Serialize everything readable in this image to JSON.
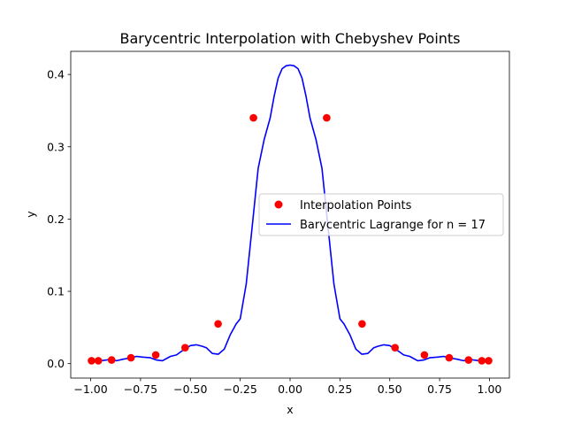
{
  "chart_data": {
    "type": "line",
    "title": "Barycentric Interpolation with Chebyshev Points",
    "xlabel": "x",
    "ylabel": "y",
    "xlim": [
      -1.1,
      1.1
    ],
    "ylim": [
      -0.02,
      0.432
    ],
    "x_ticks": [
      -1.0,
      -0.75,
      -0.5,
      -0.25,
      0.0,
      0.25,
      0.5,
      0.75,
      1.0
    ],
    "x_tick_labels": [
      "−1.00",
      "−0.75",
      "−0.50",
      "−0.25",
      "0.00",
      "0.25",
      "0.50",
      "0.75",
      "1.00"
    ],
    "y_ticks": [
      0.0,
      0.1,
      0.2,
      0.3,
      0.4
    ],
    "y_tick_labels": [
      "0.0",
      "0.1",
      "0.2",
      "0.3",
      "0.4"
    ],
    "grid": false,
    "legend_position": "center-right",
    "series": [
      {
        "name": "Interpolation Points",
        "kind": "scatter",
        "color": "#ff0000",
        "x": [
          -0.9957,
          -0.9618,
          -0.8952,
          -0.798,
          -0.6737,
          -0.5264,
          -0.3612,
          -0.1837,
          0.0,
          0.1837,
          0.3612,
          0.5264,
          0.6737,
          0.798,
          0.8952,
          0.9618,
          0.9957
        ],
        "y": [
          0.004,
          0.004,
          0.005,
          0.008,
          0.012,
          0.022,
          0.055,
          0.34,
          null,
          0.34,
          0.055,
          0.022,
          0.012,
          0.008,
          0.005,
          0.004,
          0.004
        ]
      },
      {
        "name": "Barycentric Lagrange for n = 17",
        "kind": "line",
        "color": "#0000ff",
        "x": [
          -1.0,
          -0.98,
          -0.95,
          -0.92,
          -0.9,
          -0.87,
          -0.84,
          -0.8,
          -0.77,
          -0.74,
          -0.7,
          -0.67,
          -0.64,
          -0.6,
          -0.57,
          -0.54,
          -0.5,
          -0.47,
          -0.44,
          -0.42,
          -0.39,
          -0.36,
          -0.33,
          -0.3,
          -0.27,
          -0.25,
          -0.22,
          -0.19,
          -0.16,
          -0.13,
          -0.1,
          -0.08,
          -0.06,
          -0.04,
          -0.02,
          0.0,
          0.02,
          0.04,
          0.06,
          0.08,
          0.1,
          0.13,
          0.16,
          0.19,
          0.22,
          0.25,
          0.27,
          0.3,
          0.33,
          0.36,
          0.39,
          0.42,
          0.44,
          0.47,
          0.5,
          0.54,
          0.57,
          0.6,
          0.64,
          0.67,
          0.7,
          0.74,
          0.77,
          0.8,
          0.84,
          0.87,
          0.9,
          0.92,
          0.95,
          0.98,
          1.0
        ],
        "y": [
          0.005,
          0.003,
          0.004,
          0.005,
          0.006,
          0.004,
          0.006,
          0.008,
          0.01,
          0.009,
          0.008,
          0.005,
          0.004,
          0.01,
          0.012,
          0.018,
          0.025,
          0.026,
          0.024,
          0.022,
          0.014,
          0.013,
          0.02,
          0.04,
          0.055,
          0.062,
          0.11,
          0.19,
          0.27,
          0.31,
          0.34,
          0.37,
          0.395,
          0.408,
          0.412,
          0.413,
          0.412,
          0.408,
          0.395,
          0.37,
          0.34,
          0.31,
          0.27,
          0.19,
          0.11,
          0.062,
          0.055,
          0.04,
          0.02,
          0.013,
          0.014,
          0.022,
          0.024,
          0.026,
          0.025,
          0.018,
          0.012,
          0.01,
          0.004,
          0.005,
          0.008,
          0.009,
          0.01,
          0.008,
          0.006,
          0.004,
          0.006,
          0.005,
          0.004,
          0.003,
          0.005
        ]
      }
    ]
  }
}
